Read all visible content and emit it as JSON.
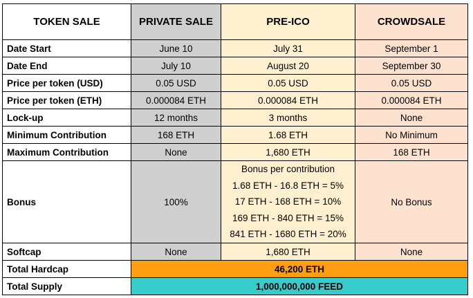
{
  "headers": {
    "token_sale": "TOKEN SALE",
    "private_sale": "PRIVATE SALE",
    "pre_ico": "PRE-ICO",
    "crowdsale": "CROWDSALE"
  },
  "rows": {
    "date_start": {
      "label": "Date Start",
      "private": "June 10",
      "pre_ico": "July 31",
      "crowd": "September 1"
    },
    "date_end": {
      "label": "Date End",
      "private": "July 10",
      "pre_ico": "August 20",
      "crowd": "September 30"
    },
    "price_usd": {
      "label": "Price per token (USD)",
      "private": "0.05 USD",
      "pre_ico": "0.05 USD",
      "crowd": "0.05 USD"
    },
    "price_eth": {
      "label": "Price per token (ETH)",
      "private": "0.000084 ETH",
      "pre_ico": "0.000084 ETH",
      "crowd": "0.000084 ETH"
    },
    "lockup": {
      "label": "Lock-up",
      "private": "12 months",
      "pre_ico": "3 months",
      "crowd": "None"
    },
    "min_contribution": {
      "label": "Minimum Contribution",
      "private": "168 ETH",
      "pre_ico": "1.68 ETH",
      "crowd": "No Minimum"
    },
    "max_contribution": {
      "label": "Maximum Contribution",
      "private": "None",
      "pre_ico": "1,680 ETH",
      "crowd": "168 ETH"
    },
    "bonus": {
      "label": "Bonus",
      "private": "100%",
      "pre_ico_lines": [
        "Bonus per contribution",
        "1.68 ETH - 16.8 ETH = 5%",
        "17 ETH - 168 ETH = 10%",
        "169 ETH - 840 ETH = 15%",
        "841 ETH - 1680 ETH = 20%"
      ],
      "crowd": "No Bonus"
    },
    "softcap": {
      "label": "Softcap",
      "private": "None",
      "pre_ico": "1,680 ETH",
      "crowd": "None"
    },
    "total_hardcap": {
      "label": "Total Hardcap",
      "value": "46,200 ETH"
    },
    "total_supply": {
      "label": "Total Supply",
      "value": "1,000,000,000 FEED"
    }
  },
  "colors": {
    "private_bg": "#cfcfcf",
    "pre_ico_bg": "#fff1cf",
    "crowd_bg": "#fde3cf",
    "hardcap_bg": "#ff9e11",
    "supply_bg": "#36cccc"
  }
}
